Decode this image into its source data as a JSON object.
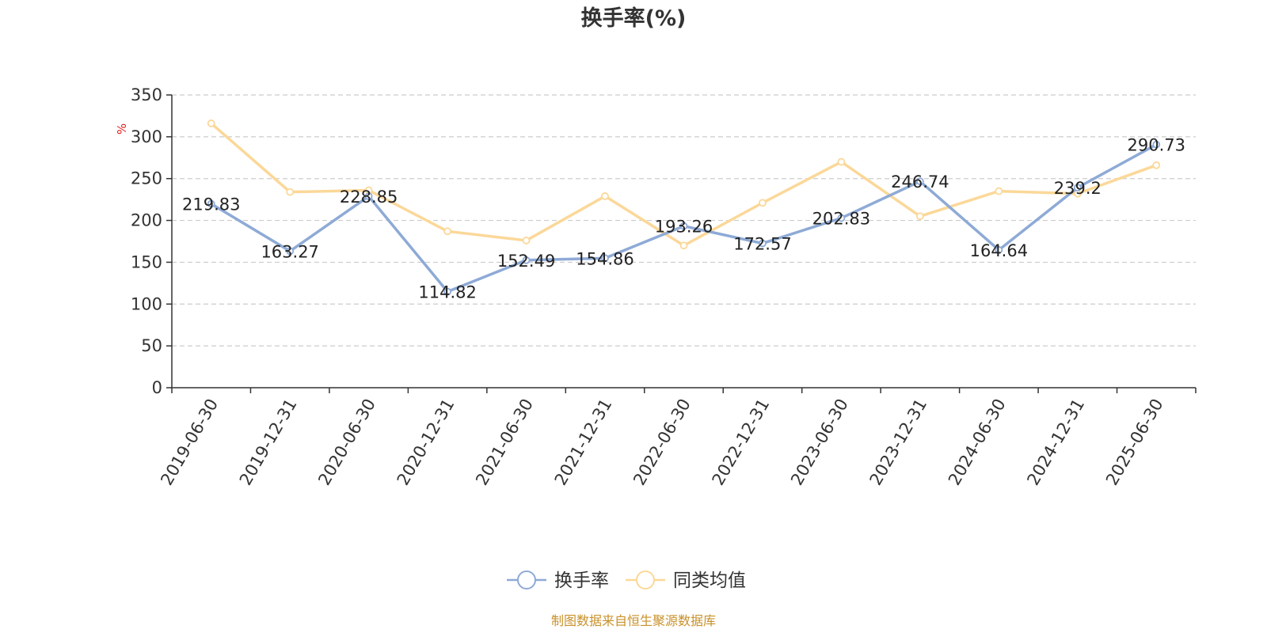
{
  "chart_data": {
    "type": "line",
    "title": "换手率(%)",
    "ylabel": "%",
    "ylim": [
      0,
      350
    ],
    "yticks": [
      0,
      50,
      100,
      150,
      200,
      250,
      300,
      350
    ],
    "grid": true,
    "legend_position": "bottom",
    "categories": [
      "2019-06-30",
      "2019-12-31",
      "2020-06-30",
      "2020-12-31",
      "2021-06-30",
      "2021-12-31",
      "2022-06-30",
      "2022-12-31",
      "2023-06-30",
      "2023-12-31",
      "2024-06-30",
      "2024-12-31",
      "2025-06-30"
    ],
    "series": [
      {
        "name": "换手率",
        "color": "#8eaad6",
        "values": [
          219.83,
          163.27,
          228.85,
          114.82,
          152.49,
          154.86,
          193.26,
          172.57,
          202.83,
          246.74,
          164.64,
          239.2,
          290.73
        ],
        "labels": [
          "219.83",
          "163.27",
          "228.85",
          "114.82",
          "152.49",
          "154.86",
          "193.26",
          "172.57",
          "202.83",
          "246.74",
          "164.64",
          "239.2",
          "290.73"
        ]
      },
      {
        "name": "同类均值",
        "color": "#fbd899",
        "values": [
          316,
          234,
          236,
          187,
          176,
          229,
          170,
          221,
          270,
          205,
          235,
          232,
          266
        ]
      }
    ]
  },
  "source": "制图数据来自恒生聚源数据库",
  "colors": {
    "unit_label": "#e02020",
    "source_text": "#c8912a",
    "axis": "#333333",
    "grid": "#cccccc"
  }
}
